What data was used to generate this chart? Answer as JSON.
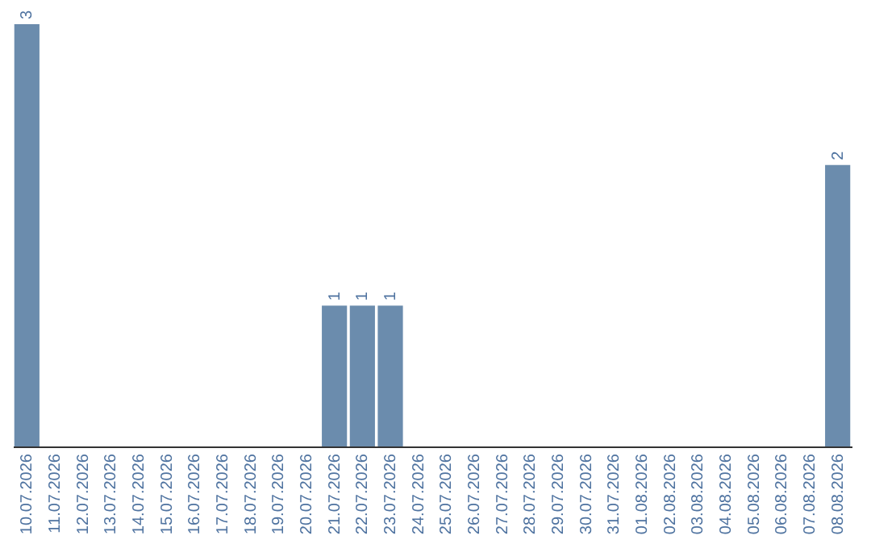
{
  "chart_data": {
    "type": "bar",
    "categories": [
      "10.07.2026",
      "11.07.2026",
      "12.07.2026",
      "13.07.2026",
      "14.07.2026",
      "15.07.2026",
      "16.07.2026",
      "17.07.2026",
      "18.07.2026",
      "19.07.2026",
      "20.07.2026",
      "21.07.2026",
      "22.07.2026",
      "23.07.2026",
      "24.07.2026",
      "25.07.2026",
      "26.07.2026",
      "27.07.2026",
      "28.07.2026",
      "29.07.2026",
      "30.07.2026",
      "31.07.2026",
      "01.08.2026",
      "02.08.2026",
      "03.08.2026",
      "04.08.2026",
      "05.08.2026",
      "06.08.2026",
      "07.08.2026",
      "08.08.2026"
    ],
    "values": [
      3,
      0,
      0,
      0,
      0,
      0,
      0,
      0,
      0,
      0,
      0,
      1,
      1,
      1,
      0,
      0,
      0,
      0,
      0,
      0,
      0,
      0,
      0,
      0,
      0,
      0,
      0,
      0,
      0,
      2
    ],
    "value_labels": [
      "3",
      null,
      null,
      null,
      null,
      null,
      null,
      null,
      null,
      null,
      null,
      "1",
      "1",
      "1",
      null,
      null,
      null,
      null,
      null,
      null,
      null,
      null,
      null,
      null,
      null,
      null,
      null,
      null,
      null,
      "2"
    ],
    "color": "#6b8cad",
    "grid": false
  }
}
